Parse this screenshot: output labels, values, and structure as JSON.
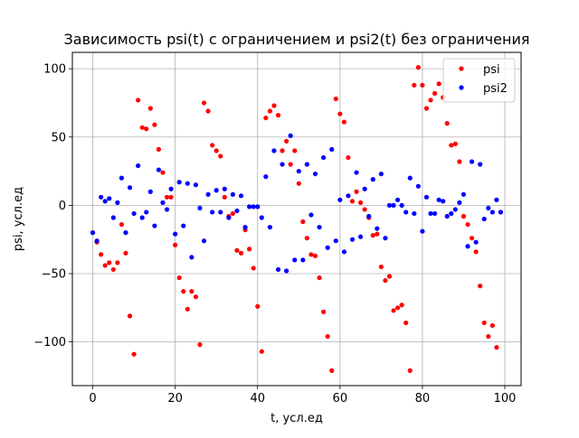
{
  "chart_data": {
    "type": "scatter",
    "title": "Зависимость psi(t) с ограничением и psi2(t) без ограничения",
    "xlabel": "t, усл.ед",
    "ylabel": "psi, усл.ед",
    "xlim": [
      -4.95,
      103.95
    ],
    "ylim": [
      -132,
      112
    ],
    "xticks": [
      0,
      20,
      40,
      60,
      80,
      100
    ],
    "xtick_labels": [
      "0",
      "20",
      "40",
      "60",
      "80",
      "100"
    ],
    "yticks": [
      -100,
      -50,
      0,
      50,
      100
    ],
    "ytick_labels": [
      "−100",
      "−50",
      "0",
      "50",
      "100"
    ],
    "grid": true,
    "legend_position": "top-right",
    "series": [
      {
        "name": "psi",
        "color": "#ff0000",
        "marker": "circle",
        "x": [
          0,
          1,
          2,
          3,
          4,
          5,
          6,
          7,
          8,
          9,
          10,
          11,
          12,
          13,
          14,
          15,
          16,
          17,
          18,
          19,
          20,
          21,
          22,
          23,
          24,
          25,
          26,
          27,
          28,
          29,
          30,
          31,
          32,
          33,
          34,
          35,
          36,
          37,
          38,
          39,
          40,
          41,
          42,
          43,
          44,
          45,
          46,
          47,
          48,
          49,
          50,
          51,
          52,
          53,
          54,
          55,
          56,
          57,
          58,
          59,
          60,
          61,
          62,
          63,
          64,
          65,
          66,
          67,
          68,
          69,
          70,
          71,
          72,
          73,
          74,
          75,
          76,
          77,
          78,
          79,
          80,
          81,
          82,
          83,
          84,
          85,
          86,
          87,
          88,
          89,
          90,
          91,
          92,
          93,
          94,
          95,
          96,
          97,
          98,
          99
        ],
        "y": [
          -20,
          -27,
          -36,
          -44,
          -42,
          -47,
          -42,
          -14,
          -35,
          -81,
          -109,
          77,
          57,
          56,
          71,
          59,
          41,
          24,
          6,
          6,
          -29,
          -53,
          -63,
          -76,
          -63,
          -67,
          -102,
          75,
          69,
          44,
          40,
          36,
          6,
          -8,
          -6,
          -33,
          -35,
          -18,
          -32,
          -46,
          -74,
          -107,
          64,
          69,
          73,
          66,
          40,
          47,
          30,
          40,
          16,
          -12,
          -24,
          -36,
          -37,
          -53,
          -78,
          -96,
          -121,
          78,
          67,
          61,
          35,
          3,
          10,
          2,
          -3,
          -9,
          -22,
          -21,
          -45,
          -55,
          -52,
          -77,
          -75,
          -73,
          -86,
          -121,
          88,
          101,
          88,
          71,
          77,
          82,
          89,
          79,
          60,
          44,
          45,
          32,
          -8,
          -14,
          -24,
          -34,
          -59,
          -86,
          -96,
          -88,
          -104,
          -5
        ]
      },
      {
        "name": "psi2",
        "color": "#0000ff",
        "marker": "circle",
        "x": [
          0,
          1,
          2,
          3,
          4,
          5,
          6,
          7,
          8,
          9,
          10,
          11,
          12,
          13,
          14,
          15,
          16,
          17,
          18,
          19,
          20,
          21,
          22,
          23,
          24,
          25,
          26,
          27,
          28,
          29,
          30,
          31,
          32,
          33,
          34,
          35,
          36,
          37,
          38,
          39,
          40,
          41,
          42,
          43,
          44,
          45,
          46,
          47,
          48,
          49,
          50,
          51,
          52,
          53,
          54,
          55,
          56,
          57,
          58,
          59,
          60,
          61,
          62,
          63,
          64,
          65,
          66,
          67,
          68,
          69,
          70,
          71,
          72,
          73,
          74,
          75,
          76,
          77,
          78,
          79,
          80,
          81,
          82,
          83,
          84,
          85,
          86,
          87,
          88,
          89,
          90,
          91,
          92,
          93,
          94,
          95,
          96,
          97,
          98,
          99
        ],
        "y": [
          -20,
          -26,
          6,
          3,
          5,
          -9,
          2,
          20,
          -20,
          13,
          -6,
          29,
          -9,
          -5,
          10,
          -15,
          26,
          2,
          -3,
          12,
          -21,
          17,
          -15,
          16,
          -38,
          15,
          -2,
          -26,
          8,
          -5,
          11,
          -5,
          12,
          -9,
          8,
          -4,
          7,
          -16,
          -1,
          -1,
          -1,
          -9,
          21,
          -16,
          40,
          -47,
          30,
          -48,
          51,
          -40,
          25,
          -40,
          30,
          -7,
          23,
          -16,
          35,
          -31,
          41,
          -26,
          4,
          -34,
          7,
          -25,
          24,
          -23,
          12,
          -8,
          19,
          -17,
          23,
          -24,
          0,
          0,
          4,
          0,
          -5,
          20,
          -6,
          14,
          -19,
          6,
          -6,
          -6,
          4,
          3,
          -8,
          -6,
          -3,
          2,
          8,
          -30,
          32,
          -27,
          30,
          -10,
          -2,
          -5,
          4,
          -5
        ]
      }
    ]
  }
}
